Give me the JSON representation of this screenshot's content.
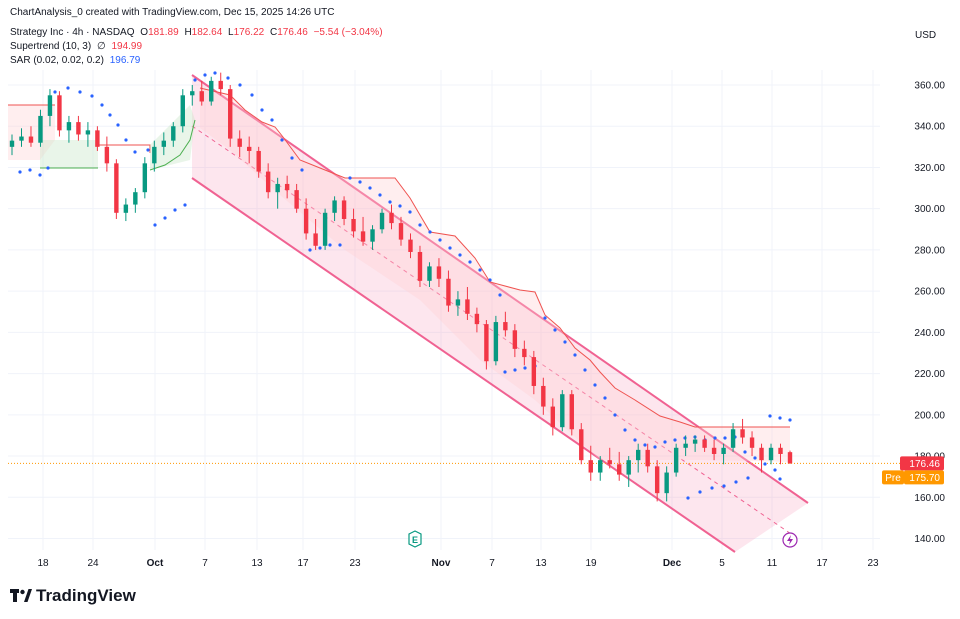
{
  "header": {
    "publisher": "ChartAnalysis_0 created with TradingView.com, Dec 15, 2025 14:26 UTC",
    "symbol": "Strategy Inc · 4h · NASDAQ",
    "ohlc": {
      "o_label": "O",
      "o": "181.89",
      "h_label": "H",
      "h": "182.64",
      "l_label": "L",
      "l": "176.22",
      "c_label": "C",
      "c": "176.46",
      "change": "−5.54 (−3.04%)"
    },
    "supertrend": {
      "label": "Supertrend (10, 3)",
      "sep": "∅",
      "value": "194.99"
    },
    "sar": {
      "label": "SAR (0.02, 0.02, 0.2)",
      "value": "196.79"
    }
  },
  "currency": "USD",
  "brand": "TradingView",
  "price_tags": {
    "last": "176.46",
    "pre_label": "Pre",
    "pre": "175.70"
  },
  "colors": {
    "up": "#089981",
    "down": "#f23645",
    "sar": "#2962ff",
    "channel": "#f06292",
    "last_price": "#f23645",
    "pre": "#ff9800"
  },
  "markers": {
    "earnings": "E",
    "split": "dividend-icon"
  },
  "chart_data": {
    "type": "candlestick",
    "title": "Strategy Inc · 4h · NASDAQ",
    "yaxis": {
      "ticks": [
        "140.00",
        "160.00",
        "180.00",
        "200.00",
        "220.00",
        "240.00",
        "260.00",
        "280.00",
        "300.00",
        "320.00",
        "340.00",
        "360.00"
      ],
      "ylim": [
        130,
        372
      ]
    },
    "xaxis": {
      "ticks": [
        "18",
        "24",
        "Oct",
        "7",
        "13",
        "17",
        "23",
        "Nov",
        "7",
        "13",
        "19",
        "Dec",
        "5",
        "11",
        "17",
        "23"
      ]
    },
    "grid": true,
    "candles": [
      {
        "o": 330,
        "h": 336,
        "l": 326,
        "c": 333
      },
      {
        "o": 333,
        "h": 339,
        "l": 330,
        "c": 335
      },
      {
        "o": 335,
        "h": 340,
        "l": 330,
        "c": 332
      },
      {
        "o": 332,
        "h": 348,
        "l": 330,
        "c": 345
      },
      {
        "o": 345,
        "h": 358,
        "l": 340,
        "c": 355
      },
      {
        "o": 355,
        "h": 357,
        "l": 335,
        "c": 338
      },
      {
        "o": 338,
        "h": 345,
        "l": 332,
        "c": 342
      },
      {
        "o": 342,
        "h": 345,
        "l": 333,
        "c": 336
      },
      {
        "o": 336,
        "h": 342,
        "l": 330,
        "c": 338
      },
      {
        "o": 338,
        "h": 340,
        "l": 328,
        "c": 330
      },
      {
        "o": 330,
        "h": 335,
        "l": 318,
        "c": 322
      },
      {
        "o": 322,
        "h": 324,
        "l": 295,
        "c": 298
      },
      {
        "o": 298,
        "h": 305,
        "l": 294,
        "c": 302
      },
      {
        "o": 302,
        "h": 310,
        "l": 298,
        "c": 308
      },
      {
        "o": 308,
        "h": 325,
        "l": 305,
        "c": 322
      },
      {
        "o": 322,
        "h": 333,
        "l": 318,
        "c": 330
      },
      {
        "o": 330,
        "h": 337,
        "l": 326,
        "c": 333
      },
      {
        "o": 333,
        "h": 342,
        "l": 330,
        "c": 340
      },
      {
        "o": 340,
        "h": 358,
        "l": 337,
        "c": 355
      },
      {
        "o": 355,
        "h": 360,
        "l": 350,
        "c": 357
      },
      {
        "o": 357,
        "h": 362,
        "l": 350,
        "c": 352
      },
      {
        "o": 352,
        "h": 364,
        "l": 350,
        "c": 362
      },
      {
        "o": 362,
        "h": 366,
        "l": 355,
        "c": 358
      },
      {
        "o": 358,
        "h": 360,
        "l": 330,
        "c": 334
      },
      {
        "o": 334,
        "h": 338,
        "l": 325,
        "c": 330
      },
      {
        "o": 330,
        "h": 335,
        "l": 322,
        "c": 328
      },
      {
        "o": 328,
        "h": 330,
        "l": 315,
        "c": 318
      },
      {
        "o": 318,
        "h": 322,
        "l": 305,
        "c": 308
      },
      {
        "o": 308,
        "h": 315,
        "l": 300,
        "c": 312
      },
      {
        "o": 312,
        "h": 316,
        "l": 305,
        "c": 309
      },
      {
        "o": 309,
        "h": 312,
        "l": 298,
        "c": 300
      },
      {
        "o": 300,
        "h": 305,
        "l": 285,
        "c": 288
      },
      {
        "o": 288,
        "h": 295,
        "l": 280,
        "c": 282
      },
      {
        "o": 282,
        "h": 300,
        "l": 280,
        "c": 298
      },
      {
        "o": 298,
        "h": 306,
        "l": 294,
        "c": 304
      },
      {
        "o": 304,
        "h": 306,
        "l": 292,
        "c": 295
      },
      {
        "o": 295,
        "h": 300,
        "l": 286,
        "c": 289
      },
      {
        "o": 289,
        "h": 296,
        "l": 282,
        "c": 284
      },
      {
        "o": 284,
        "h": 292,
        "l": 280,
        "c": 290
      },
      {
        "o": 290,
        "h": 300,
        "l": 288,
        "c": 298
      },
      {
        "o": 298,
        "h": 302,
        "l": 290,
        "c": 293
      },
      {
        "o": 293,
        "h": 296,
        "l": 282,
        "c": 285
      },
      {
        "o": 285,
        "h": 288,
        "l": 276,
        "c": 279
      },
      {
        "o": 279,
        "h": 282,
        "l": 262,
        "c": 265
      },
      {
        "o": 265,
        "h": 274,
        "l": 262,
        "c": 272
      },
      {
        "o": 272,
        "h": 276,
        "l": 262,
        "c": 266
      },
      {
        "o": 266,
        "h": 270,
        "l": 250,
        "c": 253
      },
      {
        "o": 253,
        "h": 260,
        "l": 248,
        "c": 256
      },
      {
        "o": 256,
        "h": 262,
        "l": 246,
        "c": 249
      },
      {
        "o": 249,
        "h": 252,
        "l": 240,
        "c": 244
      },
      {
        "o": 244,
        "h": 246,
        "l": 222,
        "c": 226
      },
      {
        "o": 226,
        "h": 248,
        "l": 224,
        "c": 245
      },
      {
        "o": 245,
        "h": 250,
        "l": 238,
        "c": 241
      },
      {
        "o": 241,
        "h": 244,
        "l": 228,
        "c": 232
      },
      {
        "o": 232,
        "h": 236,
        "l": 224,
        "c": 228
      },
      {
        "o": 228,
        "h": 231,
        "l": 210,
        "c": 214
      },
      {
        "o": 214,
        "h": 218,
        "l": 200,
        "c": 204
      },
      {
        "o": 204,
        "h": 208,
        "l": 190,
        "c": 194
      },
      {
        "o": 194,
        "h": 212,
        "l": 192,
        "c": 210
      },
      {
        "o": 210,
        "h": 212,
        "l": 190,
        "c": 193
      },
      {
        "o": 193,
        "h": 196,
        "l": 176,
        "c": 178
      },
      {
        "o": 178,
        "h": 185,
        "l": 168,
        "c": 172
      },
      {
        "o": 172,
        "h": 180,
        "l": 168,
        "c": 178
      },
      {
        "o": 178,
        "h": 184,
        "l": 174,
        "c": 176
      },
      {
        "o": 176,
        "h": 182,
        "l": 168,
        "c": 171
      },
      {
        "o": 171,
        "h": 180,
        "l": 165,
        "c": 178
      },
      {
        "o": 178,
        "h": 186,
        "l": 172,
        "c": 183
      },
      {
        "o": 183,
        "h": 186,
        "l": 172,
        "c": 175
      },
      {
        "o": 175,
        "h": 178,
        "l": 158,
        "c": 162
      },
      {
        "o": 162,
        "h": 175,
        "l": 158,
        "c": 172
      },
      {
        "o": 172,
        "h": 186,
        "l": 170,
        "c": 184
      },
      {
        "o": 184,
        "h": 190,
        "l": 180,
        "c": 186
      },
      {
        "o": 186,
        "h": 190,
        "l": 182,
        "c": 188
      },
      {
        "o": 188,
        "h": 190,
        "l": 182,
        "c": 184
      },
      {
        "o": 184,
        "h": 188,
        "l": 178,
        "c": 181
      },
      {
        "o": 181,
        "h": 186,
        "l": 176,
        "c": 184
      },
      {
        "o": 184,
        "h": 196,
        "l": 182,
        "c": 193
      },
      {
        "o": 193,
        "h": 198,
        "l": 186,
        "c": 189
      },
      {
        "o": 189,
        "h": 192,
        "l": 180,
        "c": 184
      },
      {
        "o": 184,
        "h": 186,
        "l": 172,
        "c": 178
      },
      {
        "o": 178,
        "h": 186,
        "l": 176,
        "c": 184
      },
      {
        "o": 184,
        "h": 186,
        "l": 176,
        "c": 181
      },
      {
        "o": 181.89,
        "h": 182.64,
        "l": 176.22,
        "c": 176.46
      }
    ]
  }
}
